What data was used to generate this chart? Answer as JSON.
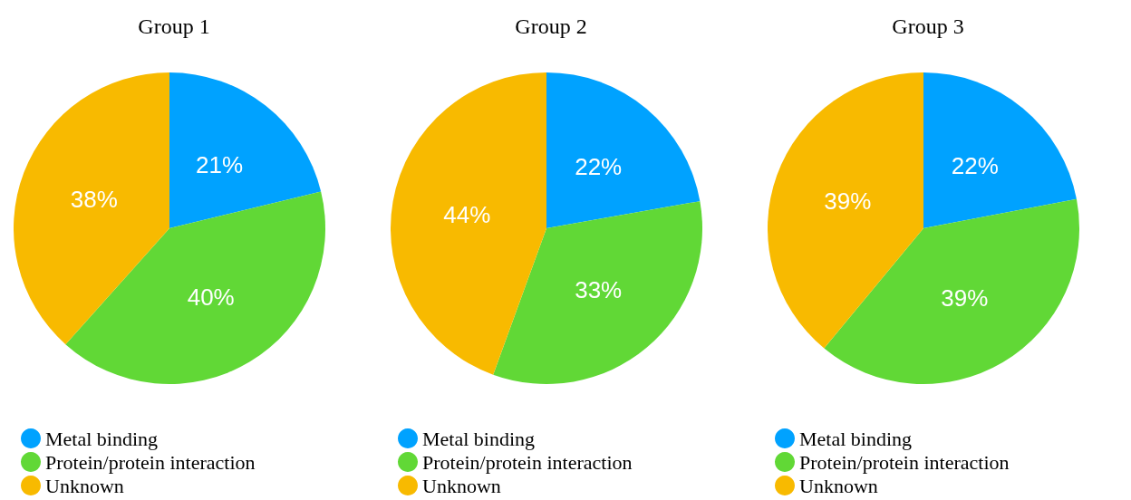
{
  "chart_data": [
    {
      "type": "pie",
      "title": "Group 1",
      "categories": [
        "Metal binding",
        "Protein/protein interaction",
        "Unknown"
      ],
      "values": [
        21,
        40,
        38
      ],
      "value_labels": [
        "21%",
        "40%",
        "38%"
      ],
      "colors": [
        "#00a2ff",
        "#61d836",
        "#f8ba00"
      ],
      "legend": "bottom left"
    },
    {
      "type": "pie",
      "title": "Group 2",
      "categories": [
        "Metal binding",
        "Protein/protein interaction",
        "Unknown"
      ],
      "values": [
        22,
        33,
        44
      ],
      "value_labels": [
        "22%",
        "33%",
        "44%"
      ],
      "colors": [
        "#00a2ff",
        "#61d836",
        "#f8ba00"
      ],
      "legend": "bottom left"
    },
    {
      "type": "pie",
      "title": "Group 3",
      "categories": [
        "Metal binding",
        "Protein/protein interaction",
        "Unknown"
      ],
      "values": [
        22,
        39,
        39
      ],
      "value_labels": [
        "22%",
        "39%",
        "39%"
      ],
      "colors": [
        "#00a2ff",
        "#61d836",
        "#f8ba00"
      ],
      "legend": "bottom left"
    }
  ]
}
